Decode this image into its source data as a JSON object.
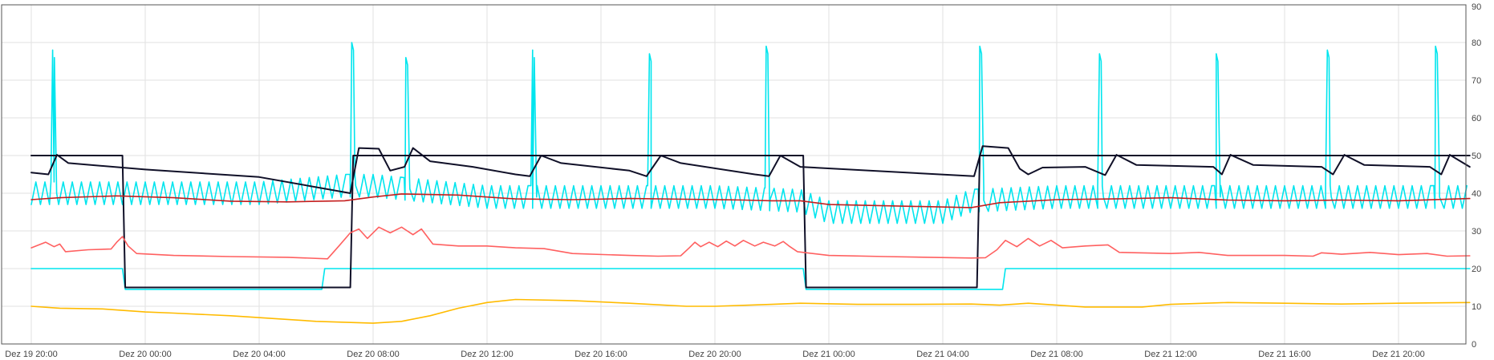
{
  "chart_data": {
    "type": "line",
    "title": "",
    "xlabel": "",
    "ylabel": "",
    "x_unit": "hours since Dez 19 20:00",
    "xlim": [
      0,
      50.5
    ],
    "ylim": [
      0,
      90
    ],
    "grid": true,
    "legend": "none",
    "x_ticks": [
      {
        "x": 0,
        "label": "Dez 19 20:00"
      },
      {
        "x": 4,
        "label": "Dez 20 00:00"
      },
      {
        "x": 8,
        "label": "Dez 20 04:00"
      },
      {
        "x": 12,
        "label": "Dez 20 08:00"
      },
      {
        "x": 16,
        "label": "Dez 20 12:00"
      },
      {
        "x": 20,
        "label": "Dez 20 16:00"
      },
      {
        "x": 24,
        "label": "Dez 20 20:00"
      },
      {
        "x": 28,
        "label": "Dez 21 00:00"
      },
      {
        "x": 32,
        "label": "Dez 21 04:00"
      },
      {
        "x": 36,
        "label": "Dez 21 08:00"
      },
      {
        "x": 40,
        "label": "Dez 21 12:00"
      },
      {
        "x": 44,
        "label": "Dez 21 16:00"
      },
      {
        "x": 48,
        "label": "Dez 21 20:00"
      }
    ],
    "y_ticks": [
      {
        "y": 0,
        "label": "0"
      },
      {
        "y": 10,
        "label": "10"
      },
      {
        "y": 20,
        "label": "20"
      },
      {
        "y": 30,
        "label": "30"
      },
      {
        "y": 40,
        "label": "40"
      },
      {
        "y": 50,
        "label": "50"
      },
      {
        "y": 60,
        "label": "60"
      },
      {
        "y": 70,
        "label": "70"
      },
      {
        "y": 80,
        "label": "80"
      },
      {
        "y": 90,
        "label": "90"
      }
    ],
    "series": [
      {
        "color": "#00e5ee",
        "style": "oscillating",
        "base": [
          [
            0,
            40
          ],
          [
            4,
            40
          ],
          [
            8,
            40
          ],
          [
            11,
            42
          ],
          [
            12,
            42
          ],
          [
            16,
            39
          ],
          [
            20,
            39
          ],
          [
            24,
            39
          ],
          [
            27,
            38
          ],
          [
            28,
            35
          ],
          [
            32,
            35
          ],
          [
            33,
            38
          ],
          [
            36,
            39
          ],
          [
            40,
            39
          ],
          [
            44,
            39
          ],
          [
            48,
            39
          ],
          [
            50.5,
            39
          ]
        ],
        "amplitude": 3,
        "period": 0.32,
        "spikes": [
          [
            0.75,
            78
          ],
          [
            11.25,
            80
          ],
          [
            13.15,
            76
          ],
          [
            17.6,
            78
          ],
          [
            21.7,
            77
          ],
          [
            25.8,
            79
          ],
          [
            33.3,
            79
          ],
          [
            37.5,
            77
          ],
          [
            41.6,
            77
          ],
          [
            45.5,
            78
          ],
          [
            49.3,
            79
          ]
        ]
      },
      {
        "color": "#00e5ee",
        "style": "line",
        "points": [
          [
            0,
            20
          ],
          [
            3.2,
            20
          ],
          [
            3.3,
            14.5
          ],
          [
            10.2,
            14.5
          ],
          [
            10.3,
            20
          ],
          [
            27.1,
            20
          ],
          [
            27.2,
            14.5
          ],
          [
            34.1,
            14.5
          ],
          [
            34.2,
            20
          ],
          [
            50.5,
            20
          ]
        ]
      },
      {
        "color": "#101028",
        "style": "line",
        "points": [
          [
            0,
            50
          ],
          [
            3.2,
            50
          ],
          [
            3.3,
            15
          ],
          [
            11.2,
            15
          ],
          [
            11.3,
            50
          ],
          [
            27.1,
            50
          ],
          [
            27.2,
            15
          ],
          [
            33.2,
            15
          ],
          [
            33.3,
            50
          ],
          [
            50.5,
            50
          ]
        ]
      },
      {
        "color": "#101028",
        "style": "line",
        "points": [
          [
            0,
            45.5
          ],
          [
            0.6,
            45
          ],
          [
            0.9,
            50.2
          ],
          [
            1.3,
            48
          ],
          [
            4,
            46.3
          ],
          [
            8,
            44.3
          ],
          [
            11.2,
            40
          ],
          [
            11.5,
            52
          ],
          [
            12.2,
            51.8
          ],
          [
            12.6,
            46
          ],
          [
            13.1,
            47
          ],
          [
            13.4,
            52
          ],
          [
            14,
            48.5
          ],
          [
            15.5,
            47
          ],
          [
            17,
            45
          ],
          [
            17.5,
            44.5
          ],
          [
            17.9,
            50
          ],
          [
            18.6,
            48
          ],
          [
            21,
            46
          ],
          [
            21.6,
            44.5
          ],
          [
            22.1,
            50
          ],
          [
            22.8,
            48
          ],
          [
            25.4,
            45
          ],
          [
            25.9,
            44.5
          ],
          [
            26.3,
            50
          ],
          [
            27,
            47
          ],
          [
            33.1,
            44.5
          ],
          [
            33.4,
            52.5
          ],
          [
            34.3,
            52
          ],
          [
            34.7,
            46.5
          ],
          [
            35,
            45
          ],
          [
            35.5,
            46.8
          ],
          [
            37,
            47
          ],
          [
            37.7,
            44.8
          ],
          [
            38.1,
            50.2
          ],
          [
            38.8,
            47.5
          ],
          [
            41.5,
            47
          ],
          [
            41.8,
            45
          ],
          [
            42.1,
            50.2
          ],
          [
            42.9,
            47.5
          ],
          [
            45.3,
            47
          ],
          [
            45.7,
            45
          ],
          [
            46.1,
            50.2
          ],
          [
            46.8,
            47.5
          ],
          [
            49.1,
            47
          ],
          [
            49.5,
            45
          ],
          [
            49.8,
            50.2
          ],
          [
            50.5,
            47
          ]
        ]
      },
      {
        "color": "#c41e1e",
        "style": "line",
        "points": [
          [
            0,
            38.3
          ],
          [
            1,
            38.8
          ],
          [
            3,
            39.3
          ],
          [
            5,
            38.8
          ],
          [
            7,
            37.9
          ],
          [
            9,
            37.7
          ],
          [
            11,
            38
          ],
          [
            12,
            39
          ],
          [
            13,
            39.8
          ],
          [
            15,
            39.5
          ],
          [
            17,
            38.5
          ],
          [
            19,
            38.3
          ],
          [
            21,
            38.6
          ],
          [
            23,
            38.4
          ],
          [
            25,
            38.2
          ],
          [
            26,
            38
          ],
          [
            27,
            38
          ],
          [
            28,
            37
          ],
          [
            31,
            36.5
          ],
          [
            33,
            36.2
          ],
          [
            34,
            37.5
          ],
          [
            36,
            38.3
          ],
          [
            38,
            38.5
          ],
          [
            40,
            38.8
          ],
          [
            42,
            38.2
          ],
          [
            44,
            38
          ],
          [
            46,
            38.2
          ],
          [
            48,
            38
          ],
          [
            50.5,
            38.6
          ]
        ]
      },
      {
        "color": "#ff6060",
        "style": "line",
        "points": [
          [
            0,
            25.5
          ],
          [
            0.5,
            27
          ],
          [
            0.8,
            25.8
          ],
          [
            1,
            26.5
          ],
          [
            1.2,
            24.5
          ],
          [
            2,
            25
          ],
          [
            2.8,
            25.2
          ],
          [
            3,
            27
          ],
          [
            3.2,
            28.5
          ],
          [
            3.4,
            26
          ],
          [
            3.7,
            24
          ],
          [
            5,
            23.5
          ],
          [
            7,
            23.2
          ],
          [
            9,
            23
          ],
          [
            10.4,
            22.6
          ],
          [
            10.8,
            26
          ],
          [
            11.2,
            29.5
          ],
          [
            11.5,
            30.5
          ],
          [
            11.8,
            28
          ],
          [
            12.2,
            31
          ],
          [
            12.6,
            29.5
          ],
          [
            13,
            31
          ],
          [
            13.4,
            29
          ],
          [
            13.7,
            30.5
          ],
          [
            14.1,
            26.5
          ],
          [
            15,
            26
          ],
          [
            16,
            26
          ],
          [
            17,
            25.5
          ],
          [
            18,
            25.3
          ],
          [
            19,
            24
          ],
          [
            21,
            23.5
          ],
          [
            22,
            23.3
          ],
          [
            22.8,
            23.4
          ],
          [
            23.1,
            25.5
          ],
          [
            23.3,
            27
          ],
          [
            23.5,
            25.8
          ],
          [
            23.8,
            27
          ],
          [
            24.1,
            25.8
          ],
          [
            24.4,
            27.3
          ],
          [
            24.7,
            26
          ],
          [
            25,
            27.5
          ],
          [
            25.4,
            26
          ],
          [
            25.7,
            27
          ],
          [
            26.1,
            26
          ],
          [
            26.4,
            27.2
          ],
          [
            26.6,
            26
          ],
          [
            26.9,
            24.5
          ],
          [
            28,
            23.5
          ],
          [
            30,
            23.2
          ],
          [
            33,
            22.8
          ],
          [
            33.5,
            22.9
          ],
          [
            33.9,
            25
          ],
          [
            34.2,
            27.5
          ],
          [
            34.6,
            25.8
          ],
          [
            35,
            28
          ],
          [
            35.4,
            26
          ],
          [
            35.8,
            27.5
          ],
          [
            36.2,
            25.5
          ],
          [
            37,
            26
          ],
          [
            37.8,
            26.3
          ],
          [
            38.2,
            24.3
          ],
          [
            40,
            24
          ],
          [
            41,
            24.3
          ],
          [
            42,
            23.5
          ],
          [
            44,
            23.5
          ],
          [
            45,
            23.3
          ],
          [
            45.3,
            24.2
          ],
          [
            46,
            23.8
          ],
          [
            47,
            24.3
          ],
          [
            48,
            23.7
          ],
          [
            49,
            24
          ],
          [
            49.7,
            23.3
          ],
          [
            50.5,
            23.4
          ]
        ]
      },
      {
        "color": "#ffbb00",
        "style": "line",
        "points": [
          [
            0,
            10
          ],
          [
            1,
            9.5
          ],
          [
            2.5,
            9.3
          ],
          [
            4,
            8.5
          ],
          [
            5,
            8.2
          ],
          [
            7,
            7.5
          ],
          [
            9,
            6.5
          ],
          [
            10,
            6
          ],
          [
            12,
            5.5
          ],
          [
            13,
            6
          ],
          [
            14,
            7.5
          ],
          [
            15,
            9.5
          ],
          [
            16,
            11
          ],
          [
            17,
            11.8
          ],
          [
            19,
            11.5
          ],
          [
            21,
            10.8
          ],
          [
            23,
            10
          ],
          [
            24,
            10
          ],
          [
            26,
            10.5
          ],
          [
            27,
            10.8
          ],
          [
            29,
            10.5
          ],
          [
            31,
            10.5
          ],
          [
            33,
            10.6
          ],
          [
            34,
            10.3
          ],
          [
            35,
            10.8
          ],
          [
            37,
            9.8
          ],
          [
            39,
            9.8
          ],
          [
            40,
            10.5
          ],
          [
            42,
            11
          ],
          [
            44,
            10.8
          ],
          [
            46,
            10.6
          ],
          [
            48,
            10.8
          ],
          [
            50.5,
            11
          ]
        ]
      }
    ]
  }
}
